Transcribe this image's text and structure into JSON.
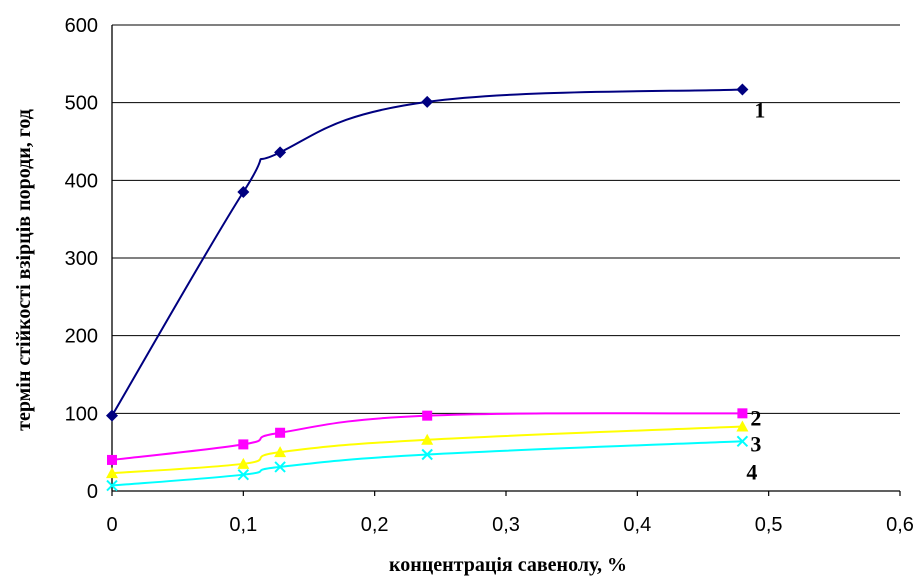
{
  "chart_data": {
    "type": "line",
    "xlabel": "концентрація савенолу, %",
    "ylabel": "термін стійкості взірців породи, год",
    "xlim": [
      0,
      0.6
    ],
    "ylim": [
      0,
      600
    ],
    "xticks": [
      "0",
      "0,1",
      "0,2",
      "0,3",
      "0,4",
      "0,5",
      "0,6"
    ],
    "yticks": [
      "0",
      "100",
      "200",
      "300",
      "400",
      "500",
      "600"
    ],
    "grid": "horizontal",
    "legend": "none",
    "series": [
      {
        "label": "1",
        "color": "#000080",
        "marker": "diamond",
        "x": [
          0,
          0.1,
          0.128,
          0.24,
          0.48
        ],
        "y": [
          97,
          385,
          436,
          501,
          517
        ]
      },
      {
        "label": "2",
        "color": "#FF00FF",
        "marker": "square",
        "x": [
          0,
          0.1,
          0.128,
          0.24,
          0.48
        ],
        "y": [
          40,
          60,
          75,
          97,
          100
        ]
      },
      {
        "label": "3",
        "color": "#FFFF00",
        "marker": "triangle",
        "x": [
          0,
          0.1,
          0.128,
          0.24,
          0.48
        ],
        "y": [
          23,
          35,
          50,
          66,
          83
        ]
      },
      {
        "label": "4",
        "color": "#00FFFF",
        "marker": "x",
        "x": [
          0,
          0.1,
          0.128,
          0.24,
          0.48
        ],
        "y": [
          7,
          21,
          31,
          47,
          64
        ]
      }
    ]
  }
}
